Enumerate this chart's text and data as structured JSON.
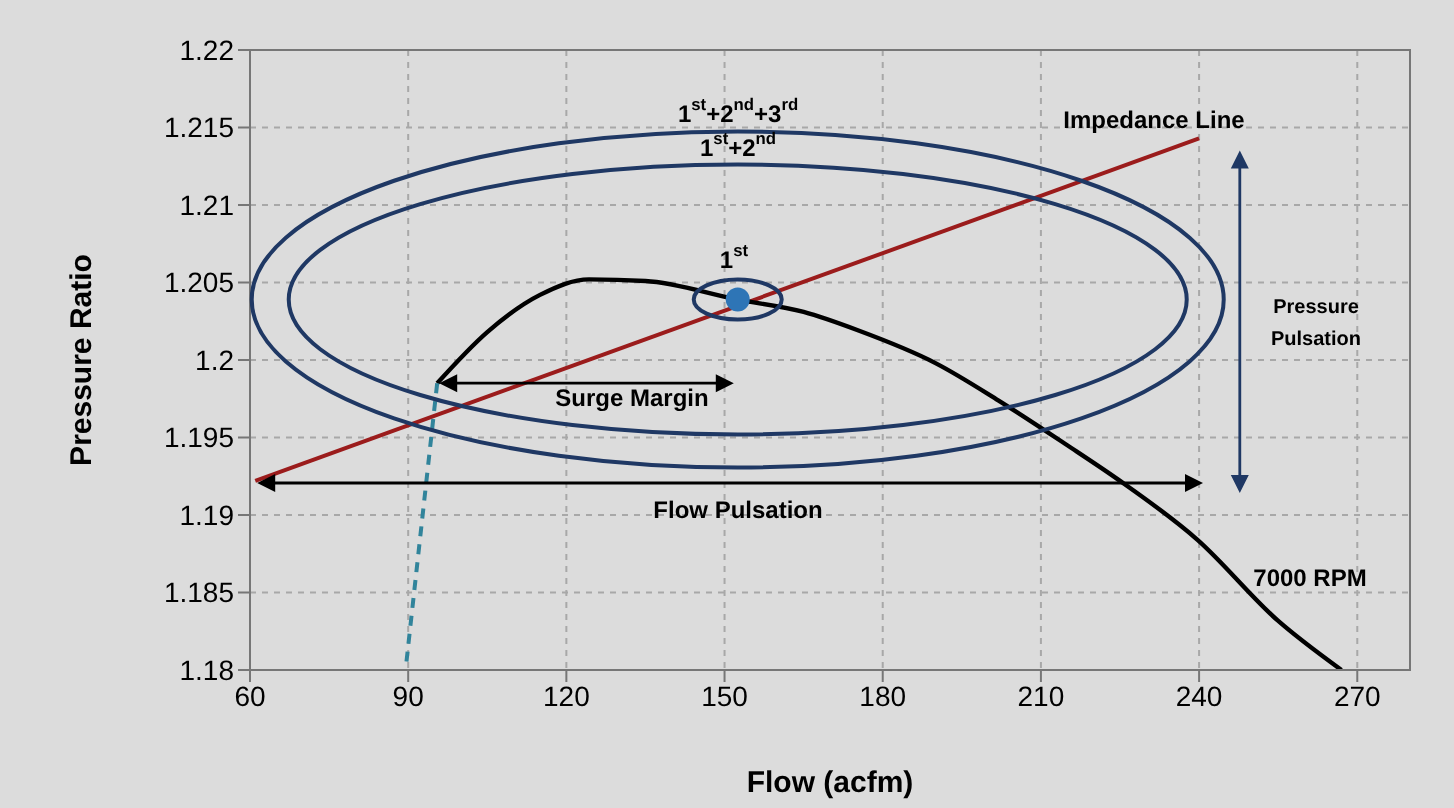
{
  "chart_data": {
    "type": "line",
    "xlabel": "Flow (acfm)",
    "ylabel": "Pressure Ratio",
    "xlim": [
      60,
      280
    ],
    "xticks": [
      60,
      90,
      120,
      150,
      180,
      210,
      240,
      270
    ],
    "ylim": [
      1.18,
      1.22
    ],
    "yticks": [
      1.18,
      1.185,
      1.19,
      1.195,
      1.2,
      1.205,
      1.21,
      1.215,
      1.22
    ],
    "grid": true,
    "marker": "none",
    "series": [
      {
        "color": "#9b1c1c",
        "x": [
          61,
          240
        ],
        "values": [
          1.1922,
          1.2143
        ]
      },
      {
        "color": "#000000",
        "x": [
          95.5,
          105,
          115,
          124.3,
          135,
          152.5,
          165,
          175.4,
          190,
          201.9,
          215,
          224.6,
          239.7,
          254.9,
          267
        ],
        "values": [
          1.1985,
          1.2018,
          1.2042,
          1.2052,
          1.2051,
          1.2039,
          1.2031,
          1.2019,
          1.1998,
          1.1974,
          1.1945,
          1.1923,
          1.1884,
          1.1832,
          1.18
        ]
      },
      {
        "color": "#31849b",
        "line_style": "dashed",
        "x": [
          95.5,
          89.5
        ],
        "values": [
          1.1985,
          1.18
        ]
      },
      {
        "type": "scatter",
        "marker": "circle",
        "color": "#2e75b6",
        "x": [
          152.5
        ],
        "values": [
          1.2039
        ]
      }
    ],
    "annotations": [
      "1$^{st}$+2$^{nd}$+3$^{rd}$",
      "1$^{st}$+2$^{nd}$",
      "1$^{st}$",
      "Impedance Line",
      "Surge Margin",
      "Flow Pulsation",
      "Pressure Pulsation",
      "7000 RPM"
    ]
  }
}
